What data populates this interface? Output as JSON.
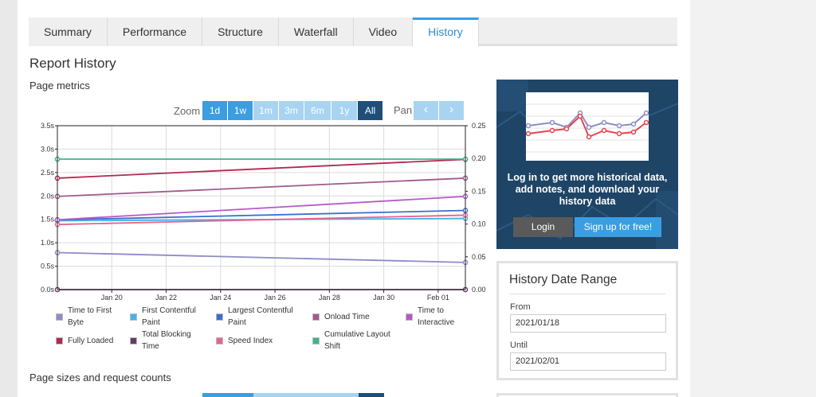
{
  "tabs": [
    "Summary",
    "Performance",
    "Structure",
    "Waterfall",
    "Video",
    "History"
  ],
  "active_tab": "History",
  "headings": {
    "report_history": "Report History",
    "page_metrics": "Page metrics",
    "page_sizes": "Page sizes and request counts"
  },
  "zoom": {
    "label": "Zoom",
    "buttons": [
      "1d",
      "1w",
      "1m",
      "3m",
      "6m",
      "1y",
      "All"
    ],
    "selected": "All",
    "pan_label": "Pan",
    "pan_prev": "‹",
    "pan_next": "›"
  },
  "chart_data": {
    "type": "line",
    "x_ticks": [
      "Jan 20",
      "Jan 22",
      "Jan 24",
      "Jan 26",
      "Jan 28",
      "Jan 30",
      "Feb 01"
    ],
    "x_range": [
      "Jan 18",
      "Feb 02"
    ],
    "y_left_ticks": [
      "0.0s",
      "0.5s",
      "1.0s",
      "1.5s",
      "2.0s",
      "2.5s",
      "3.0s",
      "3.5s"
    ],
    "y_left_range": [
      0,
      3.5
    ],
    "y_right_ticks": [
      "0.00",
      "0.05",
      "0.10",
      "0.15",
      "0.20",
      "0.25"
    ],
    "y_right_range": [
      0,
      0.25
    ],
    "x": [
      "Jan 18",
      "Feb 02"
    ],
    "series": [
      {
        "name": "Time to First Byte",
        "color": "#8c8cc8",
        "axis": "left",
        "values": [
          0.79,
          0.58
        ]
      },
      {
        "name": "First Contentful Paint",
        "color": "#46b4e6",
        "axis": "left",
        "values": [
          1.47,
          1.52
        ]
      },
      {
        "name": "Largest Contentful Paint",
        "color": "#3c6ed2",
        "axis": "left",
        "values": [
          1.49,
          1.69
        ]
      },
      {
        "name": "Onload Time",
        "color": "#a05a8c",
        "axis": "left",
        "values": [
          1.99,
          2.38
        ]
      },
      {
        "name": "Time to Interactive",
        "color": "#b45ac8",
        "axis": "left",
        "values": [
          1.49,
          1.99
        ]
      },
      {
        "name": "Fully Loaded",
        "color": "#b42850",
        "axis": "left",
        "values": [
          2.38,
          2.78
        ]
      },
      {
        "name": "Total Blocking Time",
        "color": "#643c64",
        "axis": "left",
        "values": [
          0.0,
          0.0
        ]
      },
      {
        "name": "Speed Index",
        "color": "#e6648c",
        "axis": "left",
        "values": [
          1.39,
          1.59
        ]
      },
      {
        "name": "Cumulative Layout Shift",
        "color": "#3cb48c",
        "axis": "right",
        "values": [
          0.199,
          0.199
        ]
      }
    ],
    "grid": true,
    "legend_position": "bottom"
  },
  "legend": [
    {
      "label": "Time to First Byte",
      "color": "#8c8cc8"
    },
    {
      "label": "First Contentful Paint",
      "color": "#46b4e6"
    },
    {
      "label": "Largest Contentful Paint",
      "color": "#3c6ed2"
    },
    {
      "label": "Onload Time",
      "color": "#a05a8c"
    },
    {
      "label": "Time to Interactive",
      "color": "#b45ac8"
    },
    {
      "label": "Fully Loaded",
      "color": "#b42850"
    },
    {
      "label": "Total Blocking Time",
      "color": "#643c64"
    },
    {
      "label": "Speed Index",
      "color": "#e6648c"
    },
    {
      "label": "Cumulative Layout Shift",
      "color": "#3cb48c"
    }
  ],
  "promo": {
    "text": "Log in to get more historical data, add notes, and download your history data",
    "login": "Login",
    "signup": "Sign up for free!"
  },
  "date_range": {
    "title": "History Date Range",
    "from_label": "From",
    "from_value": "2021/01/18",
    "until_label": "Until",
    "until_value": "2021/02/01"
  },
  "colors": {
    "accent": "#3a9ee0",
    "dark_accent": "#1f4f78",
    "promo_bg": "#1e4466"
  }
}
